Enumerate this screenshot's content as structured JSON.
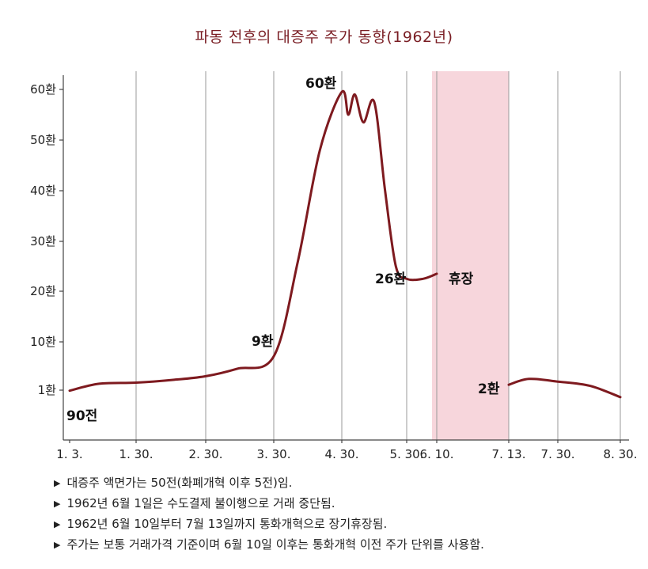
{
  "title": "파동 전후의 대증주 주가 동향(1962년)",
  "colors": {
    "line": "#7e1a1f",
    "title": "#7a1e24",
    "shade": "#f6cfd6"
  },
  "chart_data": {
    "type": "line",
    "title": "파동 전후의 대증주 주가 동향(1962년)",
    "xlabel": "",
    "ylabel": "",
    "x_ticks": [
      "1. 3.",
      "1. 30.",
      "2. 30.",
      "3. 30.",
      "4. 30.",
      "5. 30.",
      "6. 10.",
      "7. 13.",
      "7. 30.",
      "8. 30."
    ],
    "y_ticks": [
      "1환",
      "10환",
      "20환",
      "30환",
      "40환",
      "50환",
      "60환"
    ],
    "y_tick_values": [
      1,
      10,
      20,
      30,
      40,
      50,
      60
    ],
    "ylim": [
      -3,
      65
    ],
    "grid": "vertical",
    "series": [
      {
        "segment": "before-suspension",
        "points": [
          [
            "1. 3.",
            0.9
          ],
          [
            "1. 15.",
            2.2
          ],
          [
            "1. 30.",
            2.4
          ],
          [
            "2. 15.",
            2.9
          ],
          [
            "2. 30.",
            3.6
          ],
          [
            "3. 15.",
            5.0
          ],
          [
            "3. 30.",
            7.3
          ],
          [
            "4. 10.",
            26.0
          ],
          [
            "4. 20.",
            48.0
          ],
          [
            "4. 30.",
            59.5
          ],
          [
            "5. 3.",
            55.0
          ],
          [
            "5. 6.",
            59.0
          ],
          [
            "5. 10.",
            53.5
          ],
          [
            "5. 15.",
            57.5
          ],
          [
            "5. 20.",
            40.0
          ],
          [
            "5. 25.",
            25.0
          ],
          [
            "5. 30.",
            22.5
          ],
          [
            "6. 5.",
            22.5
          ],
          [
            "6. 10.",
            23.5
          ]
        ]
      },
      {
        "segment": "after-resumption",
        "points": [
          [
            "7. 13.",
            2.0
          ],
          [
            "7. 20.",
            3.1
          ],
          [
            "7. 30.",
            2.6
          ],
          [
            "8. 15.",
            1.8
          ],
          [
            "8. 30.",
            -0.3
          ]
        ]
      }
    ],
    "shaded_region": {
      "from": "6. 10.",
      "to": "7. 13.",
      "label": "휴장"
    },
    "annotations": [
      "90전",
      "9환",
      "60환",
      "26환",
      "휴장",
      "2환"
    ]
  },
  "notes": [
    "대증주 액면가는 50전(화폐개혁 이후 5전)임.",
    "1962년 6월 1일은 수도결제 불이행으로 거래 중단됨.",
    "1962년 6월 10일부터 7월 13일까지 통화개혁으로 장기휴장됨.",
    "주가는 보통 거래가격 기준이며 6월 10일 이후는 통화개혁 이전 주가 단위를 사용함."
  ],
  "note_marker": "▶"
}
